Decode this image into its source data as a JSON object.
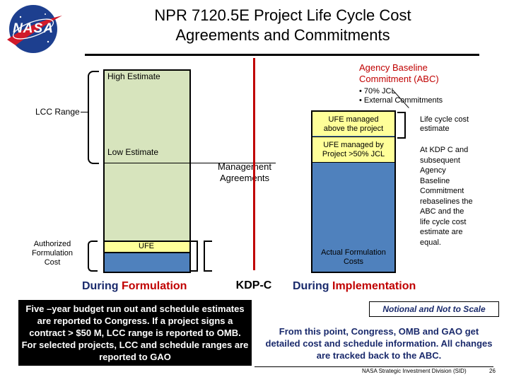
{
  "header": {
    "logo_text": "NASA",
    "title_line1": "NPR 7120.5E Project Life Cycle Cost",
    "title_line2": "Agreements and Commitments"
  },
  "formulation": {
    "high_estimate": "High Estimate",
    "low_estimate": "Low Estimate",
    "lcc_range": "LCC Range",
    "ufe": "UFE",
    "authorized_cost": [
      "Authorized",
      "Formulation",
      "Cost"
    ],
    "phase_prefix": "During ",
    "phase_word": "Formulation",
    "note": "Five –year budget run out and schedule estimates are reported to Congress. If a project signs a contract > $50 M, LCC range is reported to OMB. For selected projects, LCC and schedule ranges are reported to GAO"
  },
  "center": {
    "management_agreements": [
      "Management",
      "Agreements"
    ],
    "kdp_c": "KDP-C"
  },
  "implementation": {
    "abc_title": [
      "Agency Baseline",
      "Commitment (ABC)"
    ],
    "abc_bullets": [
      "70% JCL",
      "External Commitments"
    ],
    "ufe_above": [
      "UFE managed",
      "above the project"
    ],
    "ufe_by": [
      "UFE managed by",
      "Project >50% JCL"
    ],
    "actual_costs": [
      "Actual Formulation",
      "Costs"
    ],
    "lcc_estimate": [
      "Life cycle cost",
      "estimate"
    ],
    "rebaseline_note": [
      "At KDP C and",
      "subsequent",
      "Agency",
      "Baseline",
      "Commitment",
      "rebaselines the",
      "ABC and the",
      "life cycle cost",
      "estimate  are",
      "equal."
    ],
    "phase_prefix": "During ",
    "phase_word": "Implementation",
    "notional": "Notional and Not to Scale",
    "note": "From this point, Congress, OMB and GAO get detailed cost and schedule information. All changes are tracked back to the ABC."
  },
  "footer": {
    "org": "NASA Strategic Investment Division (SID)",
    "page_number": "26"
  },
  "colors": {
    "green_fill": "#d7e4bd",
    "blue_fill": "#4f81bd",
    "ufe_fill": "#ffff99",
    "red": "#c00000",
    "note_fill": "#000000"
  }
}
